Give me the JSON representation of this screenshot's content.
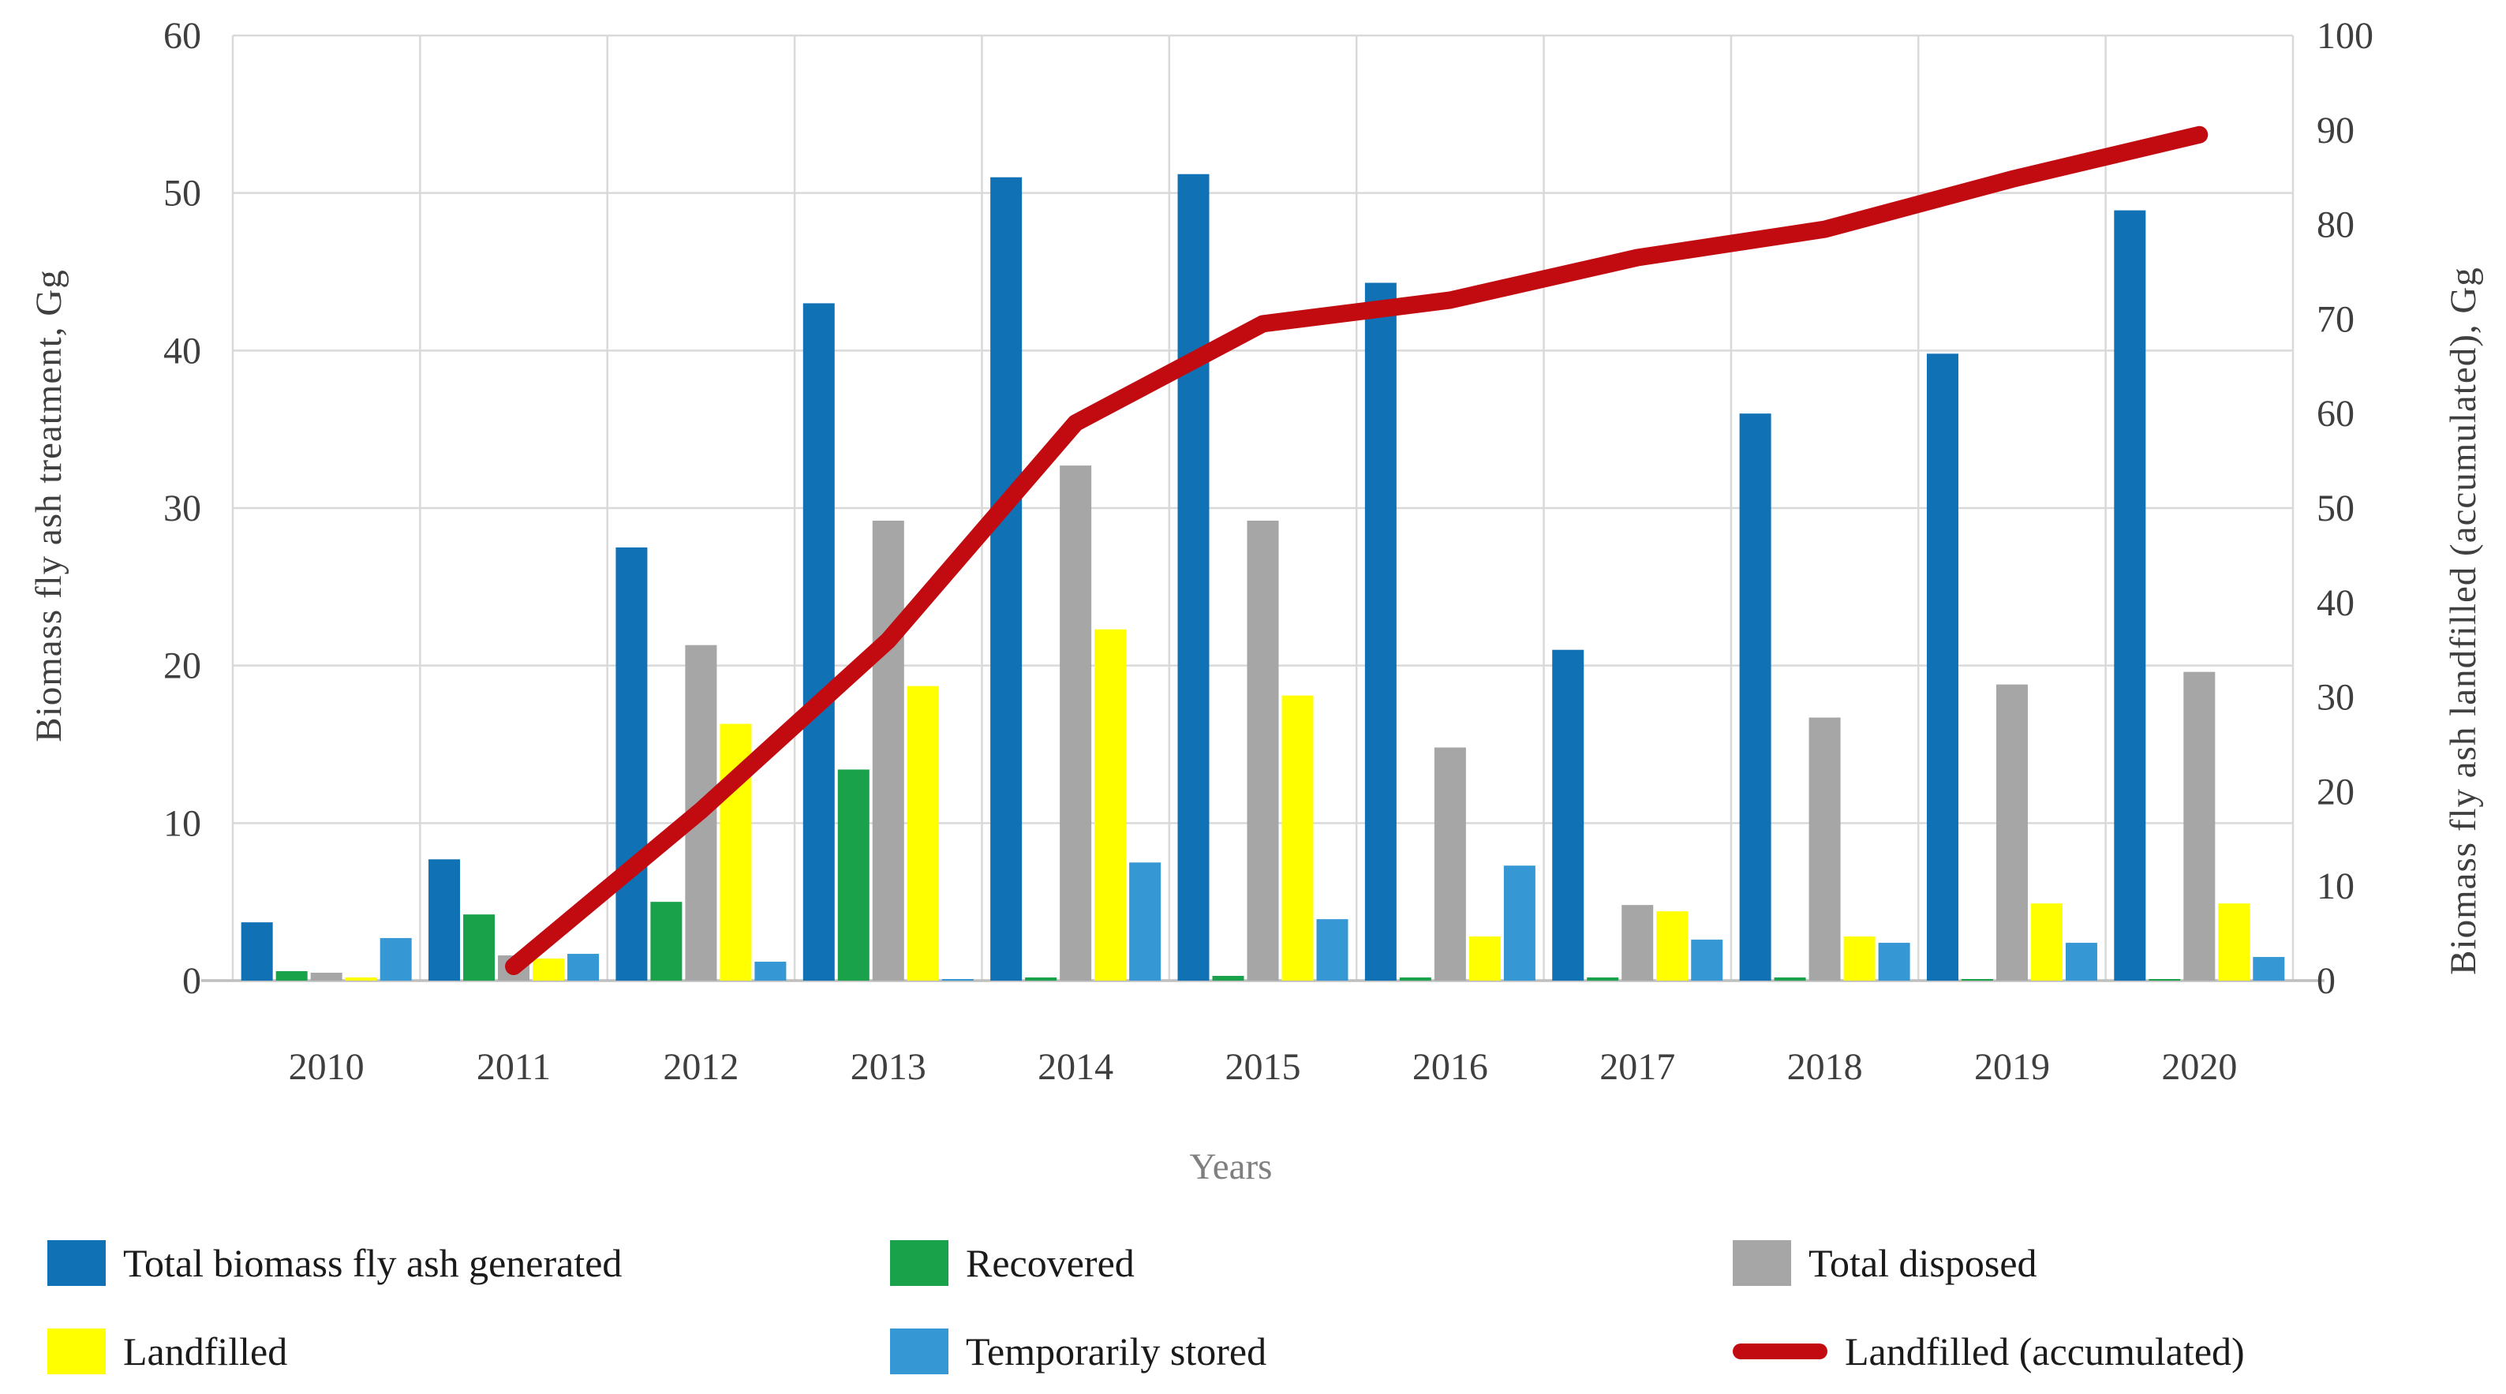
{
  "chart_data": {
    "type": "combo",
    "categories": [
      "2010",
      "2011",
      "2012",
      "2013",
      "2014",
      "2015",
      "2016",
      "2017",
      "2018",
      "2019",
      "2020"
    ],
    "series": [
      {
        "name": "Total biomass fly ash generated",
        "kind": "bar",
        "axis": "left",
        "color": "#1171b5",
        "values": [
          3.7,
          7.7,
          27.5,
          43.0,
          51.0,
          51.2,
          44.3,
          21.0,
          36.0,
          39.8,
          48.9
        ]
      },
      {
        "name": "Recovered",
        "kind": "bar",
        "axis": "left",
        "color": "#19a24a",
        "values": [
          0.6,
          4.2,
          5.0,
          13.4,
          0.2,
          0.3,
          0.2,
          0.2,
          0.2,
          0.1,
          0.1
        ]
      },
      {
        "name": "Total disposed",
        "kind": "bar",
        "axis": "left",
        "color": "#a6a6a6",
        "values": [
          0.5,
          1.6,
          21.3,
          29.2,
          32.7,
          29.2,
          14.8,
          4.8,
          16.7,
          18.8,
          19.6
        ]
      },
      {
        "name": "Landfilled",
        "kind": "bar",
        "axis": "left",
        "color": "#ffff00",
        "values": [
          0.2,
          1.4,
          16.3,
          18.7,
          22.3,
          18.1,
          2.8,
          4.4,
          2.8,
          4.9,
          4.9
        ]
      },
      {
        "name": "Temporarily stored",
        "kind": "bar",
        "axis": "left",
        "color": "#3598d4",
        "values": [
          2.7,
          1.7,
          1.2,
          0.1,
          7.5,
          3.9,
          7.3,
          2.6,
          2.4,
          2.4,
          1.5
        ]
      },
      {
        "name": "Landfilled (accumulated)",
        "kind": "line",
        "axis": "right",
        "color": "#c20b10",
        "values": [
          null,
          1.5,
          18,
          36,
          59,
          69.5,
          72,
          76.5,
          79.5,
          84.8,
          89.5
        ]
      }
    ],
    "left_axis": {
      "title": "Biomass fly ash treatment, Gg",
      "min": 0,
      "max": 60,
      "step": 10,
      "tick_labels": [
        "0",
        "10",
        "20",
        "30",
        "40",
        "50",
        "60"
      ]
    },
    "right_axis": {
      "title": "Biomass fly ash landfilled (accumulated), Gg",
      "min": 0,
      "max": 100,
      "step": 10,
      "tick_labels": [
        "0",
        "10",
        "20",
        "30",
        "40",
        "50",
        "60",
        "70",
        "80",
        "90",
        "100"
      ]
    },
    "xlabel": "Years",
    "grid": true,
    "legend_position": "bottom",
    "colors": {
      "gridline": "#d9d9d9",
      "axis_line": "#bfbfbf",
      "tick_text": "#3f3f3f",
      "xlabel_text": "#7f7f7f",
      "legend_text": "#1a1a1a"
    }
  }
}
